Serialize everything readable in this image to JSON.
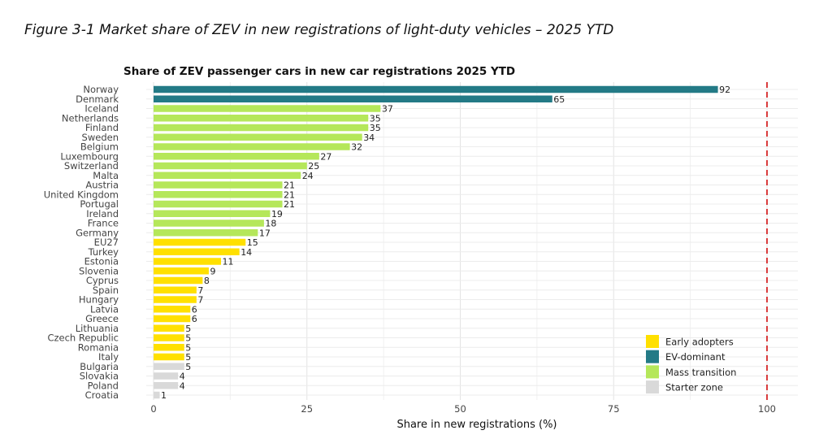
{
  "figure_caption": "Figure 3-1 Market share of ZEV in new registrations of light-duty vehicles – 2025 YTD",
  "chart_data": {
    "type": "bar",
    "orientation": "horizontal",
    "title": "Share of ZEV passenger cars in new car registrations 2025 YTD",
    "xlabel": "Share in new registrations (%)",
    "ylabel": "",
    "xlim": [
      0,
      105
    ],
    "xticks": [
      0,
      25,
      50,
      75,
      100
    ],
    "reference_line": {
      "x": 100,
      "style": "dashed",
      "color": "#d62728"
    },
    "grid": true,
    "legend_position": "bottom-right",
    "groups": [
      {
        "name": "Early adopters",
        "color": "#ffe000"
      },
      {
        "name": "EV-dominant",
        "color": "#237a86"
      },
      {
        "name": "Mass transition",
        "color": "#b5e75a"
      },
      {
        "name": "Starter zone",
        "color": "#d9d9d9"
      }
    ],
    "categories": [
      "Norway",
      "Denmark",
      "Iceland",
      "Netherlands",
      "Finland",
      "Sweden",
      "Belgium",
      "Luxembourg",
      "Switzerland",
      "Malta",
      "Austria",
      "United Kingdom",
      "Portugal",
      "Ireland",
      "France",
      "Germany",
      "EU27",
      "Turkey",
      "Estonia",
      "Slovenia",
      "Cyprus",
      "Spain",
      "Hungary",
      "Latvia",
      "Greece",
      "Lithuania",
      "Czech Republic",
      "Romania",
      "Italy",
      "Bulgaria",
      "Slovakia",
      "Poland",
      "Croatia"
    ],
    "values": [
      92,
      65,
      37,
      35,
      35,
      34,
      32,
      27,
      25,
      24,
      21,
      21,
      21,
      19,
      18,
      17,
      15,
      14,
      11,
      9,
      8,
      7,
      7,
      6,
      6,
      5,
      5,
      5,
      5,
      5,
      4,
      4,
      1
    ],
    "group_of_bar": [
      "EV-dominant",
      "EV-dominant",
      "Mass transition",
      "Mass transition",
      "Mass transition",
      "Mass transition",
      "Mass transition",
      "Mass transition",
      "Mass transition",
      "Mass transition",
      "Mass transition",
      "Mass transition",
      "Mass transition",
      "Mass transition",
      "Mass transition",
      "Mass transition",
      "Early adopters",
      "Early adopters",
      "Early adopters",
      "Early adopters",
      "Early adopters",
      "Early adopters",
      "Early adopters",
      "Early adopters",
      "Early adopters",
      "Early adopters",
      "Early adopters",
      "Early adopters",
      "Early adopters",
      "Starter zone",
      "Starter zone",
      "Starter zone",
      "Starter zone"
    ]
  }
}
